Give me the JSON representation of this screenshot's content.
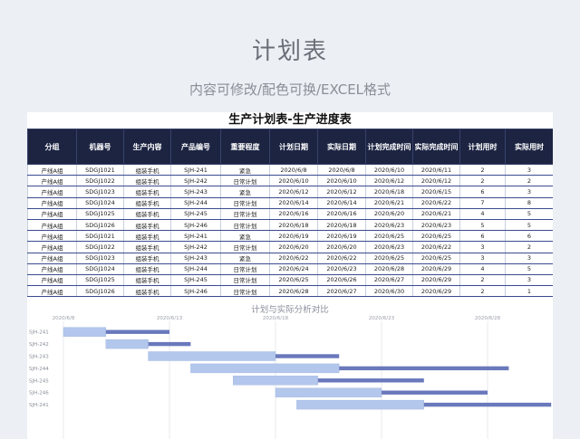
{
  "hero": {
    "title": "计划表",
    "subtitle": "内容可修改/配色可换/EXCEL格式"
  },
  "sheet": {
    "title": "生产计划表-生产进度表",
    "columns": [
      "分组",
      "机器号",
      "生产内容",
      "产品编号",
      "重要程度",
      "计划日期",
      "实际日期",
      "计划完成时间",
      "实际完成时间",
      "计划用时",
      "实际用时"
    ],
    "rows": [
      [
        "产线A组",
        "SDGJ1021",
        "组装手机",
        "SJH-241",
        "紧急",
        "2020/6/8",
        "2020/6/8",
        "2020/6/10",
        "2020/6/11",
        "2",
        "3"
      ],
      [
        "产线A组",
        "SDGJ1022",
        "组装手机",
        "SJH-242",
        "日常计划",
        "2020/6/10",
        "2020/6/10",
        "2020/6/12",
        "2020/6/12",
        "2",
        "2"
      ],
      [
        "产线A组",
        "SDGJ1023",
        "组装手机",
        "SJH-243",
        "紧急",
        "2020/6/12",
        "2020/6/12",
        "2020/6/18",
        "2020/6/15",
        "6",
        "3"
      ],
      [
        "产线A组",
        "SDGJ1024",
        "组装手机",
        "SJH-244",
        "日常计划",
        "2020/6/14",
        "2020/6/14",
        "2020/6/21",
        "2020/6/22",
        "7",
        "8"
      ],
      [
        "产线A组",
        "SDGJ1025",
        "组装手机",
        "SJH-245",
        "日常计划",
        "2020/6/16",
        "2020/6/16",
        "2020/6/20",
        "2020/6/21",
        "4",
        "5"
      ],
      [
        "产线A组",
        "SDGJ1026",
        "组装手机",
        "SJH-246",
        "日常计划",
        "2020/6/18",
        "2020/6/18",
        "2020/6/23",
        "2020/6/23",
        "5",
        "5"
      ],
      [
        "产线A组",
        "SDGJ1021",
        "组装手机",
        "SJH-241",
        "紧急",
        "2020/6/19",
        "2020/6/19",
        "2020/6/25",
        "2020/6/25",
        "6",
        "6"
      ],
      [
        "产线A组",
        "SDGJ1022",
        "组装手机",
        "SJH-242",
        "日常计划",
        "2020/6/20",
        "2020/6/20",
        "2020/6/23",
        "2020/6/22",
        "3",
        "2"
      ],
      [
        "产线A组",
        "SDGJ1023",
        "组装手机",
        "SJH-243",
        "紧急",
        "2020/6/22",
        "2020/6/22",
        "2020/6/25",
        "2020/6/25",
        "3",
        "3"
      ],
      [
        "产线A组",
        "SDGJ1024",
        "组装手机",
        "SJH-244",
        "日常计划",
        "2020/6/24",
        "2020/6/23",
        "2020/6/28",
        "2020/6/29",
        "4",
        "5"
      ],
      [
        "产线A组",
        "SDGJ1025",
        "组装手机",
        "SJH-245",
        "日常计划",
        "2020/6/25",
        "2020/6/26",
        "2020/6/27",
        "2020/6/29",
        "2",
        "3"
      ],
      [
        "产线A组",
        "SDGJ1026",
        "组装手机",
        "SJH-246",
        "日常计划",
        "2020/6/28",
        "2020/6/27",
        "2020/6/30",
        "2020/6/29",
        "2",
        "1"
      ]
    ]
  },
  "chart_data": {
    "type": "bar",
    "title": "计划与实际分析对比",
    "x_ticks": [
      "2020/6/8",
      "2020/6/13",
      "2020/6/18",
      "2020/6/23",
      "2020/6/28"
    ],
    "categories": [
      "SJH-241",
      "SJH-242",
      "SJH-243",
      "SJH-244",
      "SJH-245",
      "SJH-246",
      "SJH-241"
    ],
    "series": [
      {
        "values": [
          {
            "start": "2020/6/8",
            "days": 2
          },
          {
            "start": "2020/6/10",
            "days": 2
          },
          {
            "start": "2020/6/12",
            "days": 6
          },
          {
            "start": "2020/6/14",
            "days": 7
          },
          {
            "start": "2020/6/16",
            "days": 4
          },
          {
            "start": "2020/6/18",
            "days": 5
          },
          {
            "start": "2020/6/19",
            "days": 6
          }
        ]
      },
      {
        "values": [
          {
            "start": "2020/6/8",
            "days": 3
          },
          {
            "start": "2020/6/10",
            "days": 2
          },
          {
            "start": "2020/6/12",
            "days": 3
          },
          {
            "start": "2020/6/14",
            "days": 8
          },
          {
            "start": "2020/6/16",
            "days": 5
          },
          {
            "start": "2020/6/18",
            "days": 5
          },
          {
            "start": "2020/6/19",
            "days": 6
          }
        ]
      }
    ],
    "colors": {
      "plan": "#b3c7ec",
      "actual": "#6a78bc",
      "grid": "#d8dbe3"
    }
  }
}
